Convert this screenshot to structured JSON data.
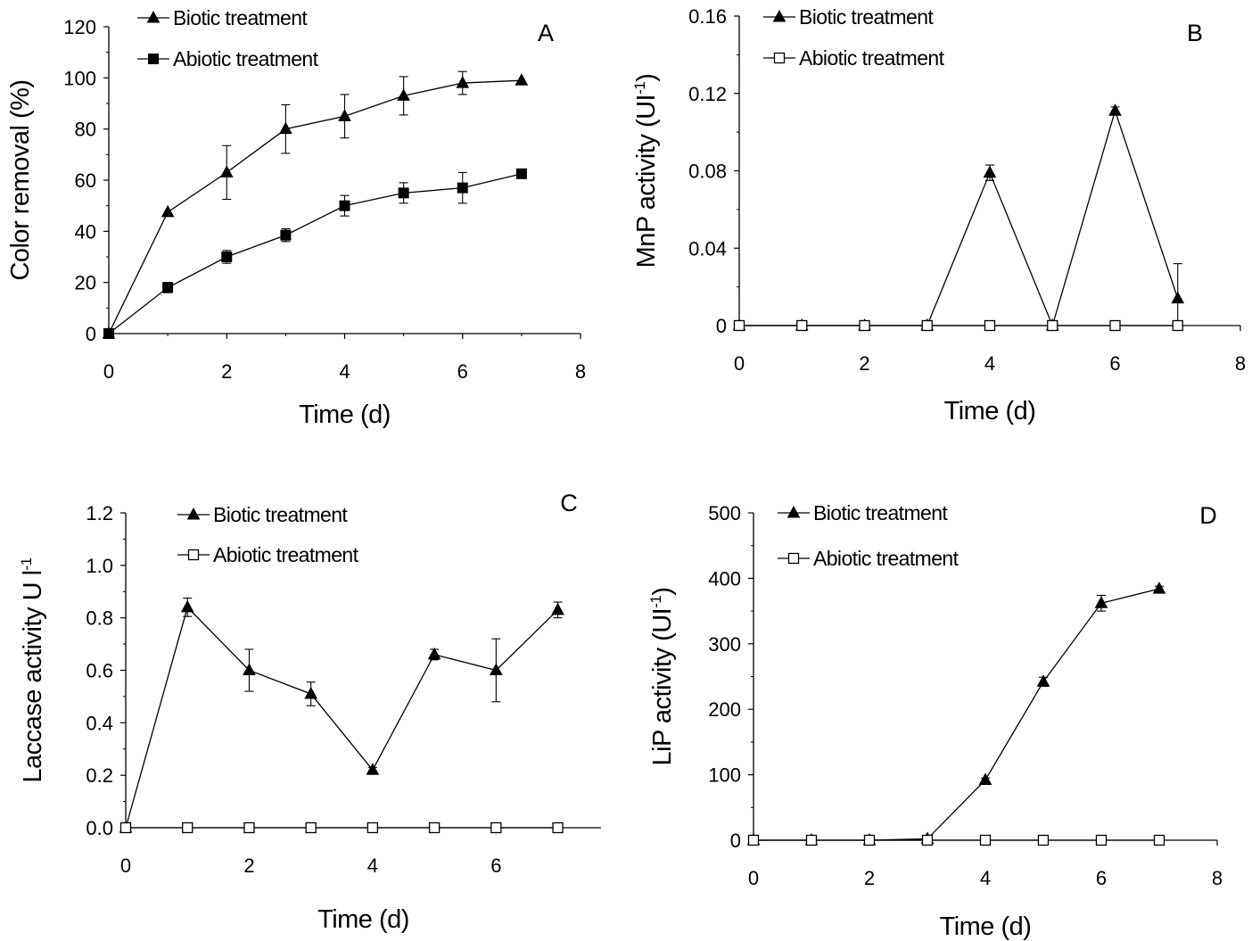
{
  "figure": {
    "background": "#ffffff",
    "ink": "#000000"
  },
  "chart_data": [
    {
      "id": "A",
      "type": "line",
      "panel_label": "A",
      "title": "",
      "xlabel": "Time (d)",
      "ylabel": "Color removal (%)",
      "ylabel_sup": "",
      "ylabel_tail": "",
      "xlim": [
        0,
        8
      ],
      "x_ticks": [
        0,
        2,
        4,
        6,
        8
      ],
      "x_tick_labels": [
        "0",
        "2",
        "4",
        "6",
        "8"
      ],
      "ylim": [
        0,
        120
      ],
      "y_ticks": [
        0,
        20,
        40,
        60,
        80,
        100,
        120
      ],
      "y_tick_labels": [
        "0",
        "20",
        "40",
        "60",
        "80",
        "100",
        "120"
      ],
      "grid": false,
      "legend_placement": "top-left",
      "x": [
        0,
        1,
        2,
        3,
        4,
        5,
        6,
        7
      ],
      "series": [
        {
          "name": "Biotic treatment",
          "marker": "filled-triangle",
          "values": [
            0,
            47.5,
            63,
            80,
            85,
            93,
            98,
            99
          ],
          "errors": [
            0,
            0,
            10.5,
            9.5,
            8.5,
            7.5,
            4.5,
            0
          ]
        },
        {
          "name": "Abiotic treatment",
          "marker": "filled-square",
          "values": [
            0,
            18,
            30,
            38.5,
            50,
            55,
            57,
            62.5
          ],
          "errors": [
            0,
            2,
            2.5,
            2.5,
            4,
            4,
            6,
            1
          ]
        }
      ]
    },
    {
      "id": "B",
      "type": "line",
      "panel_label": "B",
      "title": "",
      "xlabel": "Time (d)",
      "ylabel": "MnP  activity (UI",
      "ylabel_sup": "-1",
      "ylabel_tail": ")",
      "xlim": [
        0,
        8
      ],
      "x_ticks": [
        0,
        2,
        4,
        6,
        8
      ],
      "x_tick_labels": [
        "0",
        "2",
        "4",
        "6",
        "8"
      ],
      "ylim": [
        0,
        0.16
      ],
      "y_ticks": [
        0,
        0.04,
        0.08,
        0.12,
        0.16
      ],
      "y_tick_labels": [
        "0",
        "0.04",
        "0.08",
        "0.12",
        "0.16"
      ],
      "grid": false,
      "legend_placement": "top-left",
      "x": [
        0,
        1,
        2,
        3,
        4,
        5,
        6,
        7
      ],
      "series": [
        {
          "name": "Biotic treatment",
          "marker": "filled-triangle",
          "values": [
            0,
            0,
            0,
            0,
            0.079,
            0,
            0.111,
            0.014
          ],
          "errors": [
            0,
            0,
            0,
            0,
            0.004,
            0,
            0.002,
            0.018
          ]
        },
        {
          "name": "Abiotic treatment",
          "marker": "open-square",
          "values": [
            0,
            0,
            0,
            0,
            0,
            0,
            0,
            0
          ],
          "errors": [
            0,
            0,
            0,
            0,
            0,
            0,
            0,
            0
          ]
        }
      ]
    },
    {
      "id": "C",
      "type": "line",
      "panel_label": "C",
      "title": "",
      "xlabel": "Time (d)",
      "ylabel": "Laccase activity U l",
      "ylabel_sup": "-1",
      "ylabel_tail": "",
      "xlim": [
        0,
        7.7
      ],
      "x_ticks": [
        0,
        2,
        4,
        6
      ],
      "x_tick_labels": [
        "0",
        "2",
        "4",
        "6"
      ],
      "ylim": [
        0,
        1.2
      ],
      "y_ticks": [
        0,
        0.2,
        0.4,
        0.6,
        0.8,
        1.0,
        1.2
      ],
      "y_tick_labels": [
        "0.0",
        "0.2",
        "0.4",
        "0.6",
        "0.8",
        "1.0",
        "1.2"
      ],
      "grid": false,
      "legend_placement": "top-center",
      "x": [
        0,
        1,
        2,
        3,
        4,
        5,
        6,
        7
      ],
      "series": [
        {
          "name": "Biotic treatment",
          "marker": "filled-triangle",
          "values": [
            0,
            0.84,
            0.6,
            0.51,
            0.22,
            0.66,
            0.6,
            0.83
          ],
          "errors": [
            0,
            0.035,
            0.08,
            0.045,
            0.01,
            0.02,
            0.12,
            0.03
          ]
        },
        {
          "name": "Abiotic treatment",
          "marker": "open-square",
          "values": [
            0,
            0,
            0,
            0,
            0,
            0,
            0,
            0
          ],
          "errors": [
            0,
            0,
            0,
            0,
            0,
            0,
            0,
            0
          ]
        }
      ]
    },
    {
      "id": "D",
      "type": "line",
      "panel_label": "D",
      "title": "",
      "xlabel": "Time (d)",
      "ylabel": "LiP activity (UI",
      "ylabel_sup": "-1",
      "ylabel_tail": ")",
      "xlim": [
        0,
        8
      ],
      "x_ticks": [
        0,
        2,
        4,
        6,
        8
      ],
      "x_tick_labels": [
        "0",
        "2",
        "4",
        "6",
        "8"
      ],
      "ylim": [
        0,
        500
      ],
      "y_ticks": [
        0,
        100,
        200,
        300,
        400,
        500
      ],
      "y_tick_labels": [
        "0",
        "100",
        "200",
        "300",
        "400",
        "500"
      ],
      "grid": false,
      "legend_placement": "top-left",
      "x": [
        0,
        1,
        2,
        3,
        4,
        5,
        6,
        7
      ],
      "series": [
        {
          "name": "Biotic treatment",
          "marker": "filled-triangle",
          "values": [
            0,
            0,
            0,
            2,
            92,
            242,
            362,
            384
          ],
          "errors": [
            0,
            0,
            0,
            0,
            3,
            7,
            12,
            4
          ]
        },
        {
          "name": "Abiotic treatment",
          "marker": "open-square",
          "values": [
            0,
            0,
            0,
            0,
            0,
            0,
            0,
            0
          ],
          "errors": [
            0,
            0,
            0,
            0,
            0,
            0,
            0,
            0
          ]
        }
      ]
    }
  ]
}
